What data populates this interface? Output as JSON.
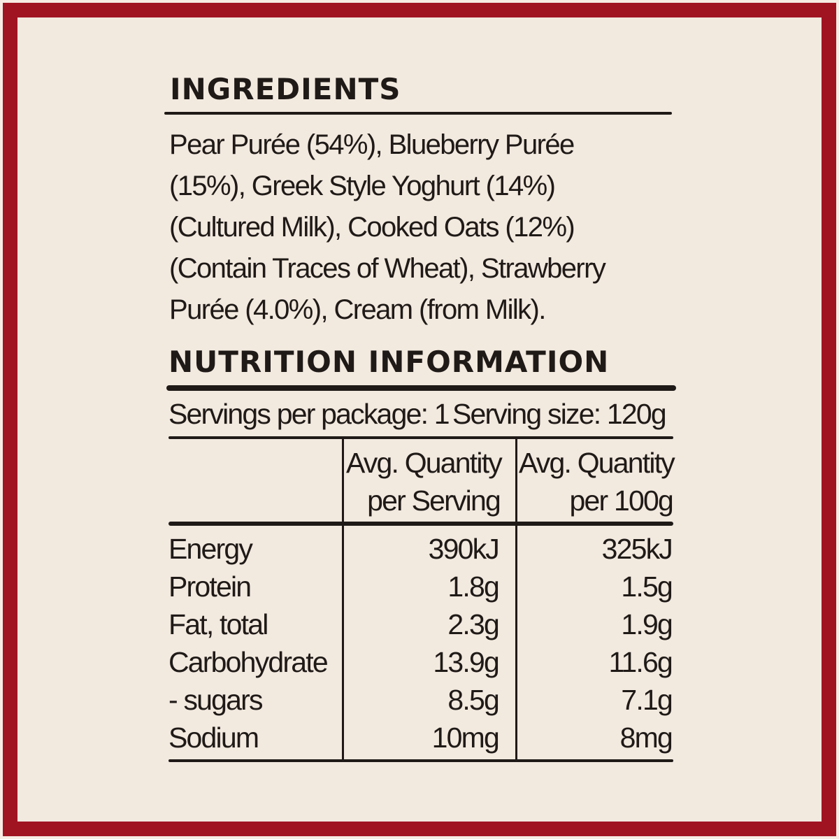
{
  "colors": {
    "border": "#a01422",
    "background": "#f2e9df",
    "text": "#1f1a17"
  },
  "ingredients": {
    "title": "INGREDIENTS",
    "lines": [
      "Pear Purée (54%), Blueberry Purée",
      "(15%), Greek Style Yoghurt (14%)",
      "(Cultured Milk), Cooked Oats (12%)",
      "(Contain Traces of Wheat), Strawberry",
      "Purée (4.0%), Cream (from Milk)."
    ]
  },
  "nutrition": {
    "title": "NUTRITION INFORMATION",
    "servings_per_package": "Servings per package: 1",
    "serving_size": "Serving size: 120g",
    "headers": {
      "per_serving": [
        "Avg. Quantity",
        "per Serving"
      ],
      "per_100g": [
        "Avg. Quantity",
        "per 100g"
      ]
    },
    "rows": [
      {
        "name": "Energy",
        "per_serving": "390kJ",
        "per_100g": "325kJ"
      },
      {
        "name": "Protein",
        "per_serving": "1.8g",
        "per_100g": "1.5g"
      },
      {
        "name": "Fat, total",
        "per_serving": "2.3g",
        "per_100g": "1.9g"
      },
      {
        "name": "Carbohydrate",
        "per_serving": "13.9g",
        "per_100g": "11.6g"
      },
      {
        "name": "- sugars",
        "per_serving": "8.5g",
        "per_100g": "7.1g"
      },
      {
        "name": "Sodium",
        "per_serving": "10mg",
        "per_100g": "8mg"
      }
    ]
  }
}
